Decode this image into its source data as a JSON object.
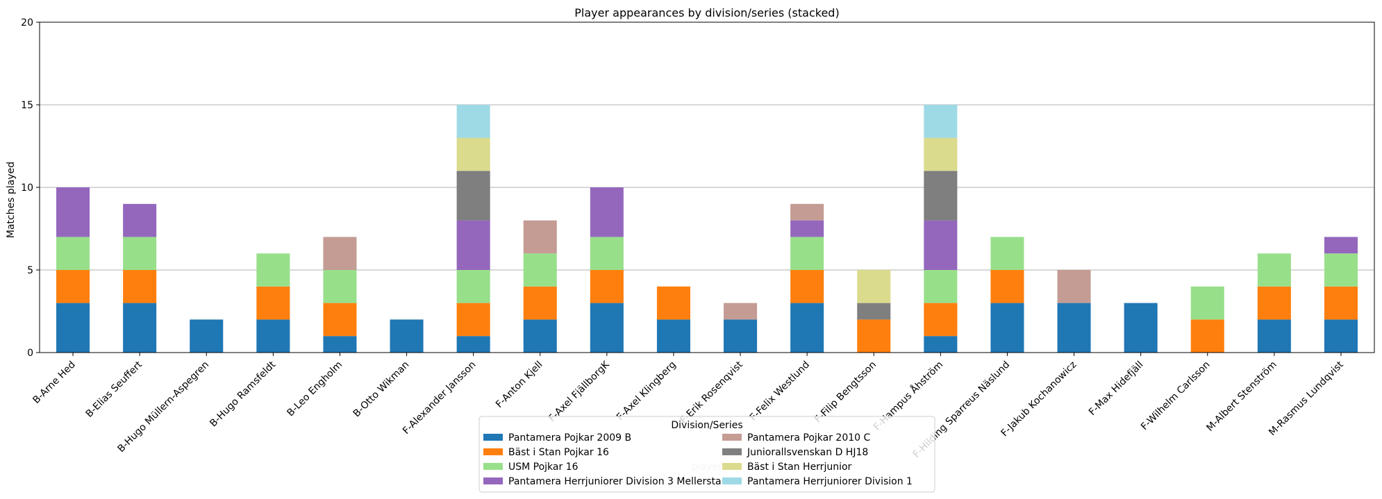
{
  "chart_data": {
    "type": "bar",
    "stacked": true,
    "title": "Player appearances by division/series (stacked)",
    "xlabel": "player",
    "ylabel": "Matches played",
    "ylim": [
      0,
      20
    ],
    "yticks": [
      0,
      5,
      10,
      15,
      20
    ],
    "grid": "y",
    "legend_title": "Division/Series",
    "legend_placement": "bottom-center",
    "categories": [
      "B-Arne Hed",
      "B-Elias Seuffert",
      "B-Hugo Müllern-Aspegren",
      "B-Hugo Ramsfeldt",
      "B-Leo Engholm",
      "B-Otto Wikman",
      "F-Alexander Jansson",
      "F-Anton Kjell",
      "F-Axel FjällborgK",
      "F-Axel Klingberg",
      "F-Erik Rosenqvist",
      "F-Felix Westlund",
      "F-Filip Bengtsson",
      "F-Hampus Åhström",
      "F-Hilding Sparreus Näslund",
      "F-Jakub Kochanowicz",
      "F-Max Hidefjäll",
      "F-Wilhelm Carlsson",
      "M-Albert Stenström",
      "M-Rasmus Lundqvist"
    ],
    "series": [
      {
        "name": "Pantamera Pojkar 2009 B",
        "color": "#1f77b4",
        "values": [
          3,
          3,
          2,
          2,
          1,
          2,
          1,
          2,
          3,
          2,
          2,
          3,
          0,
          1,
          3,
          3,
          3,
          0,
          2,
          2
        ]
      },
      {
        "name": "Bäst i Stan Pojkar 16",
        "color": "#ff7f0e",
        "values": [
          2,
          2,
          0,
          2,
          2,
          0,
          2,
          2,
          2,
          2,
          0,
          2,
          2,
          2,
          2,
          0,
          0,
          2,
          2,
          2
        ]
      },
      {
        "name": "USM Pojkar 16",
        "color": "#98df8a",
        "values": [
          2,
          2,
          0,
          2,
          2,
          0,
          2,
          2,
          2,
          0,
          0,
          2,
          0,
          2,
          2,
          0,
          0,
          2,
          2,
          2
        ]
      },
      {
        "name": "Pantamera Herrjuniorer Division 3 Mellersta",
        "color": "#9467bd",
        "values": [
          3,
          2,
          0,
          0,
          0,
          0,
          3,
          0,
          3,
          0,
          0,
          1,
          0,
          3,
          0,
          0,
          0,
          0,
          0,
          1
        ]
      },
      {
        "name": "Pantamera Pojkar 2010 C",
        "color": "#c49c94",
        "values": [
          0,
          0,
          0,
          0,
          2,
          0,
          0,
          2,
          0,
          0,
          1,
          1,
          0,
          0,
          0,
          2,
          0,
          0,
          0,
          0
        ]
      },
      {
        "name": "Juniorallsvenskan D HJ18",
        "color": "#7f7f7f",
        "values": [
          0,
          0,
          0,
          0,
          0,
          0,
          3,
          0,
          0,
          0,
          0,
          0,
          1,
          3,
          0,
          0,
          0,
          0,
          0,
          0
        ]
      },
      {
        "name": "Bäst i Stan Herrjunior",
        "color": "#dbdb8d",
        "values": [
          0,
          0,
          0,
          0,
          0,
          0,
          2,
          0,
          0,
          0,
          0,
          0,
          2,
          2,
          0,
          0,
          0,
          0,
          0,
          0
        ]
      },
      {
        "name": "Pantamera Herrjuniorer Division 1",
        "color": "#9edae5",
        "values": [
          0,
          0,
          0,
          0,
          0,
          0,
          2,
          0,
          0,
          0,
          0,
          0,
          0,
          2,
          0,
          0,
          0,
          0,
          0,
          0
        ]
      }
    ]
  }
}
